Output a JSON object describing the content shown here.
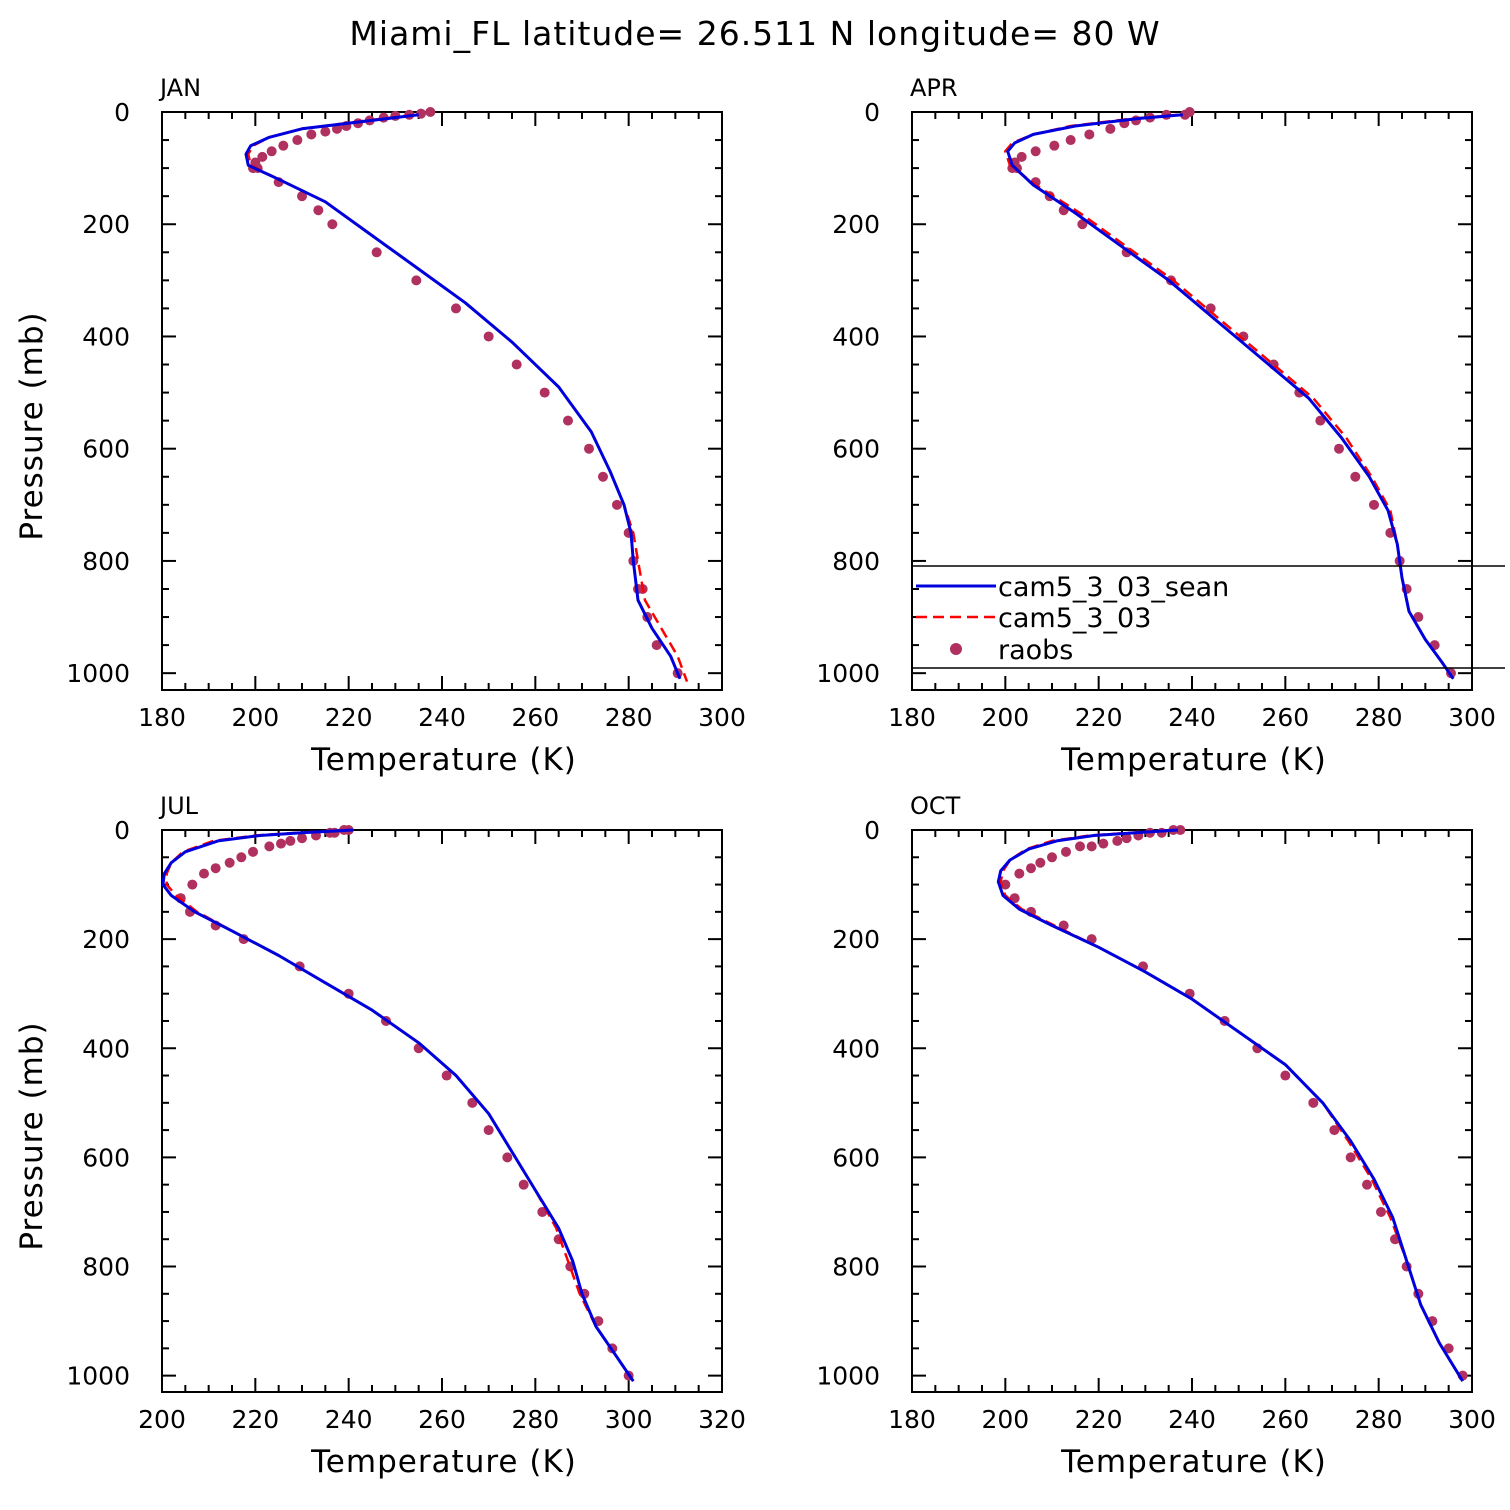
{
  "title": "Miami_FL  latitude= 26.511 N longitude= 80 W",
  "colors": {
    "model_a": "#0000dd",
    "model_b": "#ff0000",
    "obs": "#b03060"
  },
  "legend": [
    {
      "label": "cam5_3_03_sean",
      "style": "solid",
      "color": "#0000dd"
    },
    {
      "label": "cam5_3_03",
      "style": "dashed",
      "color": "#ff0000"
    },
    {
      "label": "raobs",
      "style": "dot",
      "color": "#b03060"
    }
  ],
  "chart_data": [
    {
      "type": "line",
      "panel": "JAN",
      "xlabel": "Temperature (K)",
      "ylabel": "Pressure (mb)",
      "xlim": [
        180,
        300
      ],
      "xticks": [
        180,
        200,
        220,
        240,
        260,
        280,
        300
      ],
      "ylim": [
        0,
        1000
      ],
      "yticks": [
        0,
        200,
        400,
        600,
        800,
        1000
      ],
      "y_inverted": true,
      "series": [
        {
          "name": "cam5_3_03_sean",
          "style": "solid",
          "x": [
            235,
            225,
            210,
            203,
            199,
            198,
            198.5,
            205,
            215,
            225,
            235,
            245,
            255,
            265,
            272,
            276,
            279,
            280.5,
            281,
            282,
            285,
            289,
            291
          ],
          "y": [
            5,
            15,
            30,
            45,
            60,
            75,
            95,
            120,
            160,
            220,
            280,
            340,
            410,
            490,
            570,
            640,
            700,
            750,
            800,
            870,
            920,
            970,
            1010
          ]
        },
        {
          "name": "cam5_3_03",
          "style": "dashed",
          "x": [
            234,
            224,
            210,
            203,
            199.5,
            198.5,
            199,
            205,
            215,
            225,
            235,
            245,
            255,
            265,
            272,
            276,
            279,
            281,
            282,
            283.5,
            287,
            290.5,
            292.5
          ],
          "y": [
            5,
            15,
            30,
            45,
            60,
            75,
            95,
            120,
            160,
            220,
            280,
            340,
            410,
            490,
            570,
            640,
            700,
            750,
            800,
            870,
            920,
            970,
            1015
          ]
        },
        {
          "name": "raobs",
          "style": "dot",
          "x": [
            237.5,
            235.5,
            233,
            230,
            227.5,
            224.5,
            222,
            219.5,
            217.5,
            215,
            212,
            209,
            206,
            203.5,
            201.5,
            200,
            199.5,
            200.5,
            205,
            210,
            213.5,
            216.5,
            226,
            234.5,
            243,
            250,
            256,
            262,
            267,
            271.5,
            274.5,
            277.5,
            280,
            281,
            282,
            283,
            284,
            286,
            290.5
          ],
          "y": [
            0,
            3,
            5,
            7,
            10,
            15,
            20,
            25,
            30,
            35,
            40,
            50,
            60,
            70,
            80,
            90,
            100,
            100,
            125,
            150,
            175,
            200,
            250,
            300,
            350,
            400,
            450,
            500,
            550,
            600,
            650,
            700,
            750,
            800,
            850,
            850,
            900,
            950,
            1000
          ]
        }
      ]
    },
    {
      "type": "line",
      "panel": "APR",
      "xlabel": "Temperature (K)",
      "ylabel": "",
      "xlim": [
        180,
        300
      ],
      "xticks": [
        180,
        200,
        220,
        240,
        260,
        280,
        300
      ],
      "ylim": [
        0,
        1000
      ],
      "yticks": [
        0,
        200,
        400,
        600,
        800,
        1000
      ],
      "y_inverted": true,
      "series": [
        {
          "name": "cam5_3_03_sean",
          "style": "solid",
          "x": [
            238,
            228,
            215,
            206,
            202,
            200.5,
            201.5,
            206,
            215,
            225,
            235,
            245,
            255,
            265,
            272,
            278,
            282,
            284,
            285,
            286.5,
            290,
            293.5,
            296
          ],
          "y": [
            5,
            12,
            25,
            40,
            55,
            70,
            95,
            130,
            180,
            240,
            300,
            370,
            440,
            510,
            580,
            650,
            710,
            770,
            830,
            890,
            940,
            980,
            1010
          ]
        },
        {
          "name": "cam5_3_03",
          "style": "dashed",
          "x": [
            237,
            227,
            214,
            206,
            201.5,
            200,
            201,
            206.5,
            216,
            226,
            236,
            246,
            256,
            266,
            273,
            278.5,
            282.5,
            284,
            285,
            286.5,
            290,
            293.5,
            296
          ],
          "y": [
            5,
            12,
            25,
            40,
            55,
            70,
            95,
            130,
            180,
            240,
            300,
            370,
            440,
            510,
            580,
            650,
            710,
            770,
            830,
            890,
            940,
            980,
            1010
          ]
        },
        {
          "name": "raobs",
          "style": "dot",
          "x": [
            239.5,
            238.5,
            234.5,
            231,
            228,
            225.5,
            222.5,
            218,
            214,
            210.5,
            206.5,
            203.5,
            202,
            201.5,
            202.5,
            206.5,
            209.5,
            212.5,
            216.5,
            226,
            235.5,
            244,
            251,
            257.5,
            263,
            267.5,
            271.5,
            275,
            279,
            282.5,
            284.5,
            286,
            288.5,
            292,
            295.5
          ],
          "y": [
            0,
            5,
            5,
            10,
            15,
            20,
            30,
            40,
            50,
            60,
            70,
            80,
            90,
            100,
            100,
            125,
            150,
            175,
            200,
            250,
            300,
            350,
            400,
            450,
            500,
            550,
            600,
            650,
            700,
            750,
            800,
            850,
            900,
            950,
            1000
          ]
        }
      ]
    },
    {
      "type": "line",
      "panel": "JUL",
      "xlabel": "Temperature (K)",
      "ylabel": "Pressure (mb)",
      "xlim": [
        200,
        320
      ],
      "xticks": [
        200,
        220,
        240,
        260,
        280,
        300,
        320
      ],
      "ylim": [
        0,
        1000
      ],
      "yticks": [
        0,
        200,
        400,
        600,
        800,
        1000
      ],
      "y_inverted": true,
      "series": [
        {
          "name": "cam5_3_03_sean",
          "style": "solid",
          "x": [
            241,
            230,
            221,
            212,
            205,
            202,
            200.5,
            200.2,
            202,
            207,
            215,
            225,
            235,
            245,
            255,
            263,
            270,
            275,
            280,
            285,
            288,
            290,
            293,
            297,
            301
          ],
          "y": [
            0,
            5,
            10,
            20,
            40,
            60,
            80,
            100,
            120,
            150,
            185,
            230,
            280,
            330,
            390,
            450,
            520,
            590,
            660,
            730,
            790,
            850,
            910,
            960,
            1010
          ]
        },
        {
          "name": "cam5_3_03",
          "style": "dashed",
          "x": [
            240,
            229,
            220,
            211,
            204.5,
            202,
            201,
            201,
            203,
            207.5,
            215,
            225,
            235,
            245,
            255,
            263,
            270,
            275,
            280,
            284.5,
            287,
            289.5,
            293,
            297,
            301
          ],
          "y": [
            0,
            5,
            10,
            20,
            40,
            60,
            80,
            100,
            120,
            150,
            185,
            230,
            280,
            330,
            390,
            450,
            520,
            590,
            660,
            730,
            790,
            850,
            910,
            960,
            1010
          ]
        },
        {
          "name": "raobs",
          "style": "dot",
          "x": [
            240,
            239,
            237,
            236,
            233,
            230,
            227.5,
            225.5,
            223,
            219.5,
            217,
            214.5,
            211.5,
            209,
            206.5,
            204,
            204,
            206,
            211.5,
            217.5,
            229.5,
            240,
            248,
            255,
            261,
            266.5,
            270,
            274,
            277.5,
            281.5,
            285,
            287.5,
            290.5,
            293.5,
            296.5,
            300
          ],
          "y": [
            0,
            0,
            5,
            5,
            10,
            15,
            20,
            25,
            30,
            40,
            50,
            60,
            70,
            80,
            100,
            125,
            125,
            150,
            175,
            200,
            250,
            300,
            350,
            400,
            450,
            500,
            550,
            600,
            650,
            700,
            750,
            800,
            850,
            900,
            950,
            1000
          ]
        }
      ]
    },
    {
      "type": "line",
      "panel": "OCT",
      "xlabel": "Temperature (K)",
      "ylabel": "",
      "xlim": [
        180,
        300
      ],
      "xticks": [
        180,
        200,
        220,
        240,
        260,
        280,
        300
      ],
      "ylim": [
        0,
        1000
      ],
      "yticks": [
        0,
        200,
        400,
        600,
        800,
        1000
      ],
      "y_inverted": true,
      "series": [
        {
          "name": "cam5_3_03_sean",
          "style": "solid",
          "x": [
            237,
            228,
            219,
            211,
            205,
            201,
            199,
            198.5,
            199.5,
            203,
            210,
            220,
            230,
            240,
            250,
            260,
            268,
            274,
            279,
            283,
            286,
            289,
            293,
            298
          ],
          "y": [
            0,
            5,
            10,
            20,
            35,
            55,
            75,
            95,
            120,
            145,
            175,
            215,
            260,
            310,
            370,
            430,
            500,
            570,
            640,
            710,
            790,
            870,
            940,
            1010
          ]
        },
        {
          "name": "cam5_3_03",
          "style": "dashed",
          "x": [
            236,
            227,
            218,
            210,
            204.5,
            201,
            199.5,
            199,
            200,
            203.5,
            210.5,
            220,
            230,
            240,
            250,
            260,
            268,
            273.5,
            278.5,
            282.5,
            286,
            289,
            293,
            298
          ],
          "y": [
            0,
            5,
            10,
            20,
            35,
            55,
            75,
            95,
            120,
            145,
            175,
            215,
            260,
            310,
            370,
            430,
            500,
            570,
            640,
            710,
            790,
            870,
            940,
            1010
          ]
        },
        {
          "name": "raobs",
          "style": "dot",
          "x": [
            237.5,
            236,
            233.5,
            231,
            228.5,
            226,
            224,
            221,
            218.5,
            216,
            213,
            210,
            207.5,
            205.5,
            203,
            200,
            202,
            205.5,
            212.5,
            218.5,
            229.5,
            239.5,
            247,
            254,
            260,
            266,
            270.5,
            274,
            277.5,
            280.5,
            283.5,
            286,
            288.5,
            291.5,
            295,
            298
          ],
          "y": [
            0,
            0,
            5,
            5,
            10,
            15,
            20,
            25,
            30,
            30,
            40,
            50,
            60,
            70,
            80,
            100,
            125,
            150,
            175,
            200,
            250,
            300,
            350,
            400,
            450,
            500,
            550,
            600,
            650,
            700,
            750,
            800,
            850,
            900,
            950,
            1000
          ]
        }
      ]
    }
  ]
}
